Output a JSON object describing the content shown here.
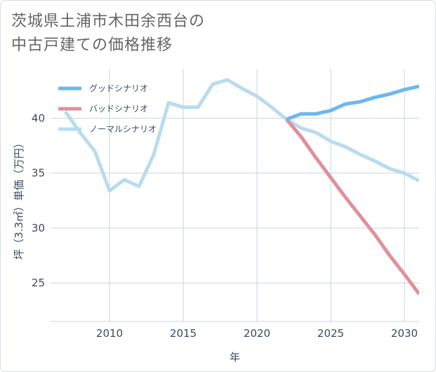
{
  "chart_data": {
    "type": "line",
    "title_lines": [
      "茨城県土浦市木田余西台の",
      "中古戸建ての価格推移"
    ],
    "xlabel": "年",
    "ylabel": "坪（3.3㎡）単価（万円）",
    "xlim": [
      2006,
      2031
    ],
    "ylim": [
      21.5,
      44.5
    ],
    "xticks": [
      2010,
      2015,
      2020,
      2025,
      2030
    ],
    "yticks": [
      25,
      30,
      35,
      40
    ],
    "grid": true,
    "legend_position": "top-left",
    "series": [
      {
        "name": "グッドシナリオ",
        "color": "#6bb8ee",
        "x": [
          2022,
          2023,
          2024,
          2025,
          2026,
          2027,
          2028,
          2029,
          2030,
          2031
        ],
        "y": [
          39.9,
          40.4,
          40.4,
          40.7,
          41.3,
          41.5,
          41.9,
          42.2,
          42.6,
          42.9
        ]
      },
      {
        "name": "バッドシナリオ",
        "color": "#e0909a",
        "x": [
          2022,
          2023,
          2024,
          2025,
          2026,
          2027,
          2028,
          2029,
          2030,
          2031
        ],
        "y": [
          39.9,
          38.3,
          36.4,
          34.6,
          32.8,
          31.1,
          29.4,
          27.5,
          25.8,
          24.0
        ]
      },
      {
        "name": "ノーマルシナリオ",
        "color": "#b8dcee",
        "x": [
          2007,
          2008,
          2009,
          2010,
          2011,
          2012,
          2013,
          2014,
          2015,
          2016,
          2017,
          2018,
          2019,
          2020,
          2021,
          2022,
          2023,
          2024,
          2025,
          2026,
          2027,
          2028,
          2029,
          2030,
          2031
        ],
        "y": [
          40.6,
          38.7,
          37.0,
          33.4,
          34.4,
          33.8,
          36.7,
          41.4,
          41.0,
          41.0,
          43.1,
          43.5,
          42.7,
          42.0,
          41.0,
          39.9,
          39.1,
          38.7,
          37.9,
          37.4,
          36.7,
          36.1,
          35.4,
          35.0,
          34.3
        ]
      }
    ]
  }
}
